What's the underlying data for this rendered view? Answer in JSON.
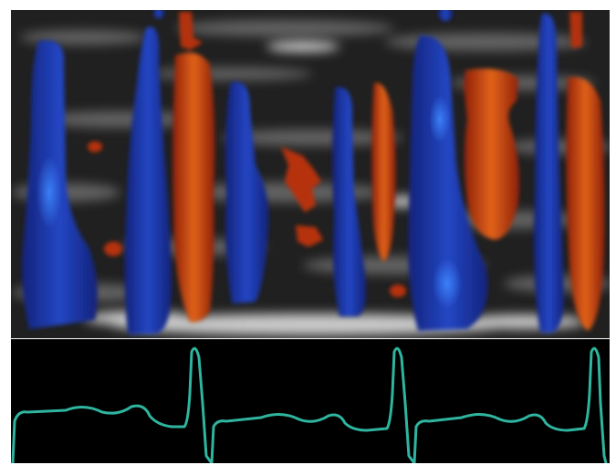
{
  "image": {
    "kind": "color-doppler-with-ecg",
    "colors": {
      "background_frame": "#ffffff",
      "tissue_gray": "#8a8a8a",
      "flow_blue": "#1b2fa0",
      "flow_blue_highlight": "#2f6fe0",
      "flow_red": "#c2360e",
      "flow_red_highlight": "#e06a1a",
      "ecg_trace": "#2fb59f",
      "ecg_background": "#000000"
    },
    "ecg": {
      "beats_visible": 3
    }
  }
}
